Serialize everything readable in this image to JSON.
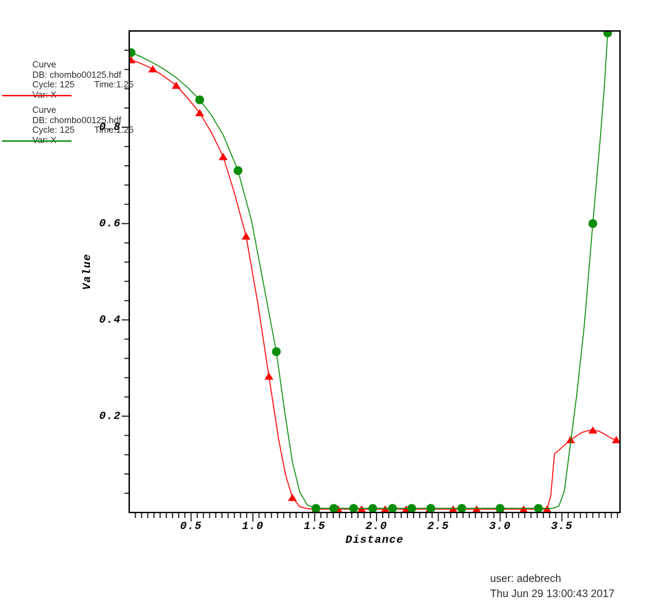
{
  "window": {
    "background": "#ffffff"
  },
  "legend": {
    "entries": [
      {
        "title": "Curve",
        "db": "DB: chombo00125.hdf",
        "cycle": "Cycle: 125",
        "time": "Time:1.25",
        "var": "Var: X",
        "color": "#fe0000"
      },
      {
        "title": "Curve",
        "db": "DB: chombo00125.hdf",
        "cycle": "Cycle: 125",
        "time": "Time:1.25",
        "var": "Var: X",
        "color": "#0a8c0a"
      }
    ]
  },
  "footer": {
    "user": "user: adebrech",
    "datetime": "Thu Jun 29 13:00:43 2017"
  },
  "chart_data": {
    "type": "line",
    "title": "",
    "xlabel": "Distance",
    "ylabel": "Value",
    "xlim": [
      0,
      3.97
    ],
    "ylim": [
      0,
      1.0
    ],
    "grid": false,
    "legend_position": "outside-upper-left",
    "x_major_ticks": [
      0.5,
      1.0,
      1.5,
      2.0,
      2.5,
      3.0,
      3.5
    ],
    "x_tick_labels": [
      "0.5",
      "1.0",
      "1.5",
      "2.0",
      "2.5",
      "3.0",
      "3.5"
    ],
    "x_minor_step": 0.05,
    "y_major_ticks": [
      0.2,
      0.4,
      0.6,
      0.8
    ],
    "y_tick_labels": [
      "0.2",
      "0.4",
      "0.6",
      "0.8"
    ],
    "y_minor_step": 0.04,
    "series": [
      {
        "name": "Var: X (chombo00125.hdf, Cycle 125, Time 1.25) - red",
        "color": "#fe0000",
        "marker": "triangle-up",
        "points": [
          [
            0.015,
            0.94
          ],
          [
            0.19,
            0.921
          ],
          [
            0.38,
            0.887
          ],
          [
            0.57,
            0.83
          ],
          [
            0.76,
            0.739
          ],
          [
            0.945,
            0.574
          ],
          [
            1.13,
            0.283
          ],
          [
            1.32,
            0.031
          ],
          [
            1.51,
            0.007
          ],
          [
            1.69,
            0.007
          ],
          [
            1.88,
            0.007
          ],
          [
            2.07,
            0.007
          ],
          [
            2.24,
            0.007
          ],
          [
            2.43,
            0.007
          ],
          [
            2.62,
            0.007
          ],
          [
            2.81,
            0.007
          ],
          [
            3.0,
            0.007
          ],
          [
            3.19,
            0.007
          ],
          [
            3.38,
            0.007
          ],
          [
            3.57,
            0.151
          ],
          [
            3.75,
            0.171
          ],
          [
            3.94,
            0.151
          ]
        ],
        "polyline": [
          [
            0.015,
            0.94
          ],
          [
            0.1,
            0.932
          ],
          [
            0.19,
            0.921
          ],
          [
            0.285,
            0.905
          ],
          [
            0.38,
            0.887
          ],
          [
            0.475,
            0.86
          ],
          [
            0.57,
            0.83
          ],
          [
            0.665,
            0.789
          ],
          [
            0.76,
            0.739
          ],
          [
            0.85,
            0.664
          ],
          [
            0.945,
            0.574
          ],
          [
            1.04,
            0.435
          ],
          [
            1.13,
            0.283
          ],
          [
            1.21,
            0.15
          ],
          [
            1.265,
            0.078
          ],
          [
            1.32,
            0.031
          ],
          [
            1.38,
            0.012
          ],
          [
            1.44,
            0.008
          ],
          [
            1.51,
            0.007
          ],
          [
            3.38,
            0.007
          ],
          [
            3.41,
            0.035
          ],
          [
            3.44,
            0.122
          ],
          [
            3.47,
            0.128
          ],
          [
            3.52,
            0.14
          ],
          [
            3.57,
            0.151
          ],
          [
            3.66,
            0.166
          ],
          [
            3.71,
            0.17
          ],
          [
            3.75,
            0.171
          ],
          [
            3.8,
            0.169
          ],
          [
            3.85,
            0.162
          ],
          [
            3.9,
            0.154
          ],
          [
            3.94,
            0.151
          ],
          [
            3.967,
            0.146
          ]
        ]
      },
      {
        "name": "Var: X (chombo00125.hdf, Cycle 125, Time 1.25) - green",
        "color": "#0a8c0a",
        "marker": "circle",
        "points": [
          [
            0.015,
            0.955
          ],
          [
            0.57,
            0.857
          ],
          [
            0.88,
            0.71
          ],
          [
            1.19,
            0.334
          ],
          [
            1.51,
            0.0086
          ],
          [
            1.655,
            0.0086
          ],
          [
            1.815,
            0.0086
          ],
          [
            1.97,
            0.0086
          ],
          [
            2.13,
            0.0086
          ],
          [
            2.285,
            0.0086
          ],
          [
            2.44,
            0.0086
          ],
          [
            2.69,
            0.0086
          ],
          [
            3.0,
            0.0086
          ],
          [
            3.31,
            0.0086
          ],
          [
            3.75,
            0.6
          ],
          [
            3.87,
            0.996
          ]
        ],
        "polyline": [
          [
            0.015,
            0.955
          ],
          [
            0.1,
            0.946
          ],
          [
            0.19,
            0.934
          ],
          [
            0.285,
            0.92
          ],
          [
            0.38,
            0.903
          ],
          [
            0.475,
            0.882
          ],
          [
            0.57,
            0.857
          ],
          [
            0.665,
            0.825
          ],
          [
            0.76,
            0.784
          ],
          [
            0.88,
            0.71
          ],
          [
            0.99,
            0.605
          ],
          [
            1.09,
            0.47
          ],
          [
            1.19,
            0.334
          ],
          [
            1.26,
            0.205
          ],
          [
            1.32,
            0.105
          ],
          [
            1.38,
            0.042
          ],
          [
            1.44,
            0.016
          ],
          [
            1.51,
            0.0086
          ],
          [
            3.42,
            0.0086
          ],
          [
            3.475,
            0.013
          ],
          [
            3.52,
            0.045
          ],
          [
            3.56,
            0.125
          ],
          [
            3.62,
            0.245
          ],
          [
            3.68,
            0.385
          ],
          [
            3.75,
            0.6
          ],
          [
            3.81,
            0.775
          ],
          [
            3.845,
            0.89
          ],
          [
            3.87,
            0.996
          ]
        ]
      }
    ]
  }
}
